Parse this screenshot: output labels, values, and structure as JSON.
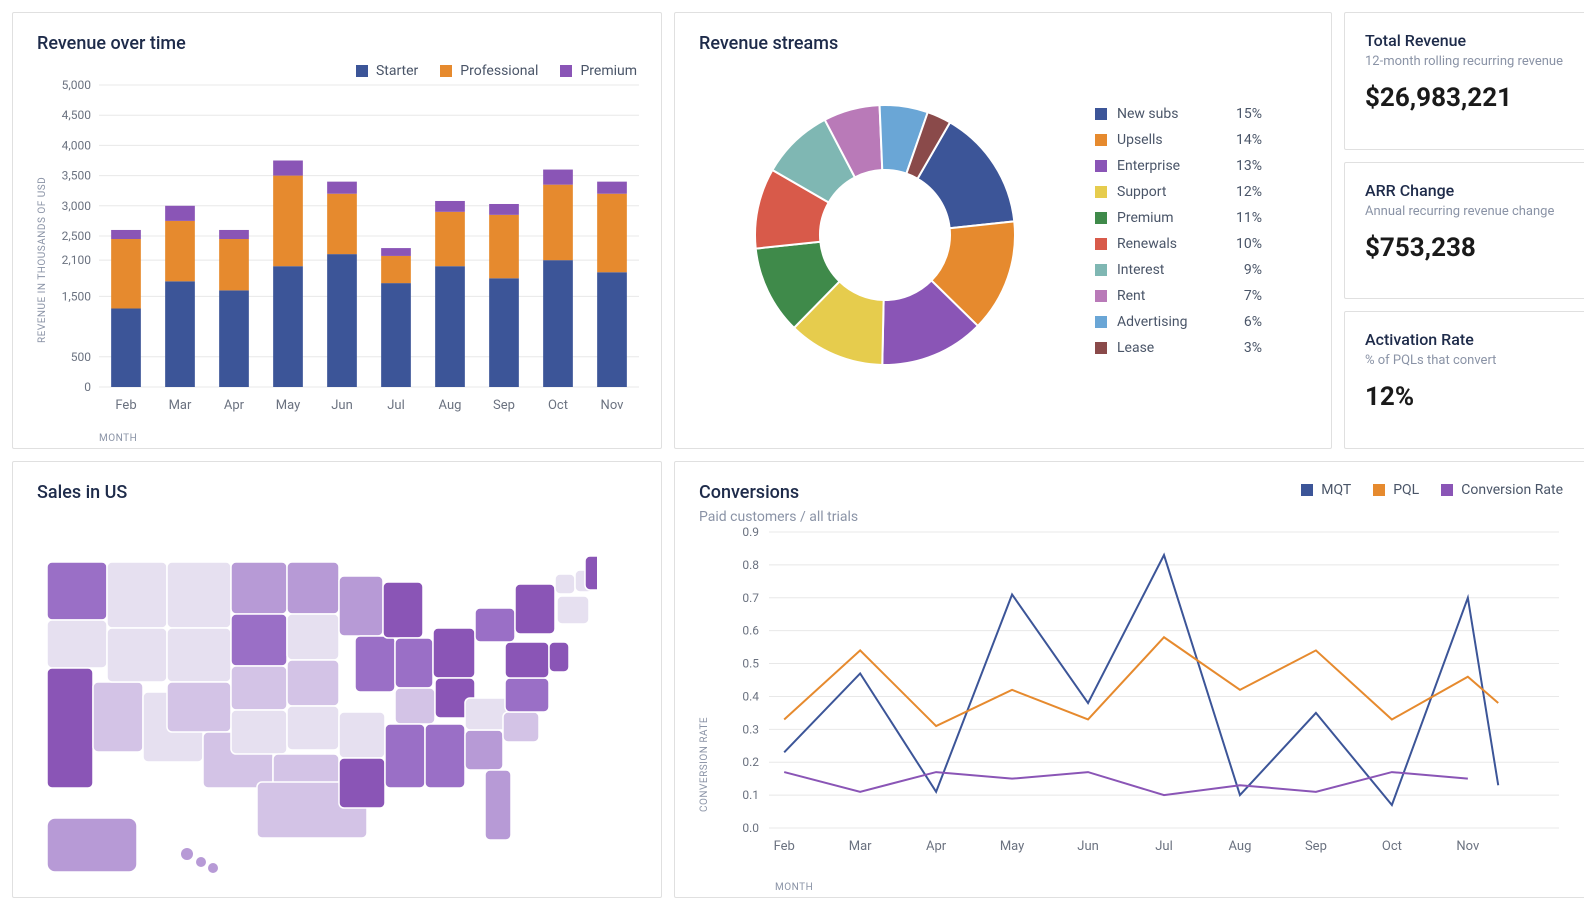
{
  "revenue_over_time": {
    "title": "Revenue over time",
    "type": "stacked-bar",
    "legend": [
      "Starter",
      "Professional",
      "Premium"
    ],
    "legend_colors": [
      "#3c5598",
      "#e68a2e",
      "#8a55b6"
    ],
    "x_axis_label": "MONTH",
    "y_axis_label": "REVENUE IN THOUSANDS OF USD",
    "categories": [
      "Feb",
      "Mar",
      "Apr",
      "May",
      "Jun",
      "Jul",
      "Aug",
      "Sep",
      "Oct",
      "Nov"
    ],
    "series": {
      "Starter": [
        1300,
        1750,
        1600,
        2000,
        2200,
        1720,
        2000,
        1800,
        2100,
        1900
      ],
      "Professional": [
        1150,
        1000,
        850,
        1500,
        1000,
        450,
        900,
        1050,
        1250,
        1300
      ],
      "Premium": [
        150,
        250,
        150,
        250,
        200,
        130,
        180,
        180,
        250,
        200
      ]
    },
    "y_ticks": [
      0,
      500,
      1500,
      2100,
      2500,
      3000,
      3500,
      4000,
      4500,
      5000
    ],
    "y_max": 5000,
    "grid_color": "#e8e8e8",
    "background_color": "#ffffff",
    "bar_width": 0.55,
    "tick_fontsize": 12,
    "axis_fontsize": 10
  },
  "revenue_streams": {
    "title": "Revenue streams",
    "type": "donut",
    "items": [
      {
        "label": "New subs",
        "pct": 15,
        "color": "#3c5598"
      },
      {
        "label": "Upsells",
        "pct": 14,
        "color": "#e68a2e"
      },
      {
        "label": "Enterprise",
        "pct": 13,
        "color": "#8a55b6"
      },
      {
        "label": "Support",
        "pct": 12,
        "color": "#e6cc4d"
      },
      {
        "label": "Premium",
        "pct": 11,
        "color": "#3f8a4a"
      },
      {
        "label": "Renewals",
        "pct": 10,
        "color": "#d85a4a"
      },
      {
        "label": "Interest",
        "pct": 9,
        "color": "#7fb7b3"
      },
      {
        "label": "Rent",
        "pct": 7,
        "color": "#b97ab8"
      },
      {
        "label": "Advertising",
        "pct": 6,
        "color": "#6aa6d6"
      },
      {
        "label": "Lease",
        "pct": 3,
        "color": "#8a4a4a"
      }
    ],
    "inner_radius_ratio": 0.5,
    "start_angle_deg": -60
  },
  "kpi": {
    "total_revenue": {
      "title": "Total Revenue",
      "sub": "12-month rolling recurring revenue",
      "value": "$26,983,221"
    },
    "arr_change": {
      "title": "ARR Change",
      "sub": "Annual recurring revenue change",
      "value": "$753,238"
    },
    "activation": {
      "title": "Activation Rate",
      "sub": "% of PQLs that convert",
      "value": "12%"
    }
  },
  "sales_us": {
    "title": "Sales in US",
    "type": "choropleth",
    "palette": [
      "#e6e0f0",
      "#d3c3e6",
      "#b79ad6",
      "#9a6fc6",
      "#8a55b6"
    ]
  },
  "conversions": {
    "title": "Conversions",
    "subtitle": "Paid customers / all trials",
    "type": "line",
    "legend": [
      "MQT",
      "PQL",
      "Conversion Rate"
    ],
    "legend_colors": [
      "#3c5598",
      "#e68a2e",
      "#8a55b6"
    ],
    "x_axis_label": "MONTH",
    "y_axis_label": "CONVERSION RATE",
    "categories": [
      "Feb",
      "Mar",
      "Apr",
      "May",
      "Jun",
      "Jul",
      "Aug",
      "Sep",
      "Oct",
      "Nov"
    ],
    "series": {
      "MQT": [
        0.23,
        0.47,
        0.11,
        0.71,
        0.38,
        0.83,
        0.1,
        0.35,
        0.07,
        0.7
      ],
      "PQL": [
        0.33,
        0.54,
        0.31,
        0.42,
        0.33,
        0.58,
        0.42,
        0.54,
        0.33,
        0.46
      ],
      "Conversion Rate": [
        0.17,
        0.11,
        0.17,
        0.15,
        0.17,
        0.1,
        0.13,
        0.11,
        0.17,
        0.15
      ]
    },
    "extra_point": {
      "series": "PQL",
      "x_after_last": 0.4,
      "y": 0.38
    },
    "extra_point_mqt": {
      "series": "MQT",
      "x_after_last": 0.4,
      "y": 0.13
    },
    "y_ticks": [
      0.0,
      0.1,
      0.2,
      0.3,
      0.4,
      0.5,
      0.6,
      0.7,
      0.8,
      0.9
    ],
    "y_max": 0.9,
    "grid_color": "#e8e8e8",
    "line_width": 2
  }
}
